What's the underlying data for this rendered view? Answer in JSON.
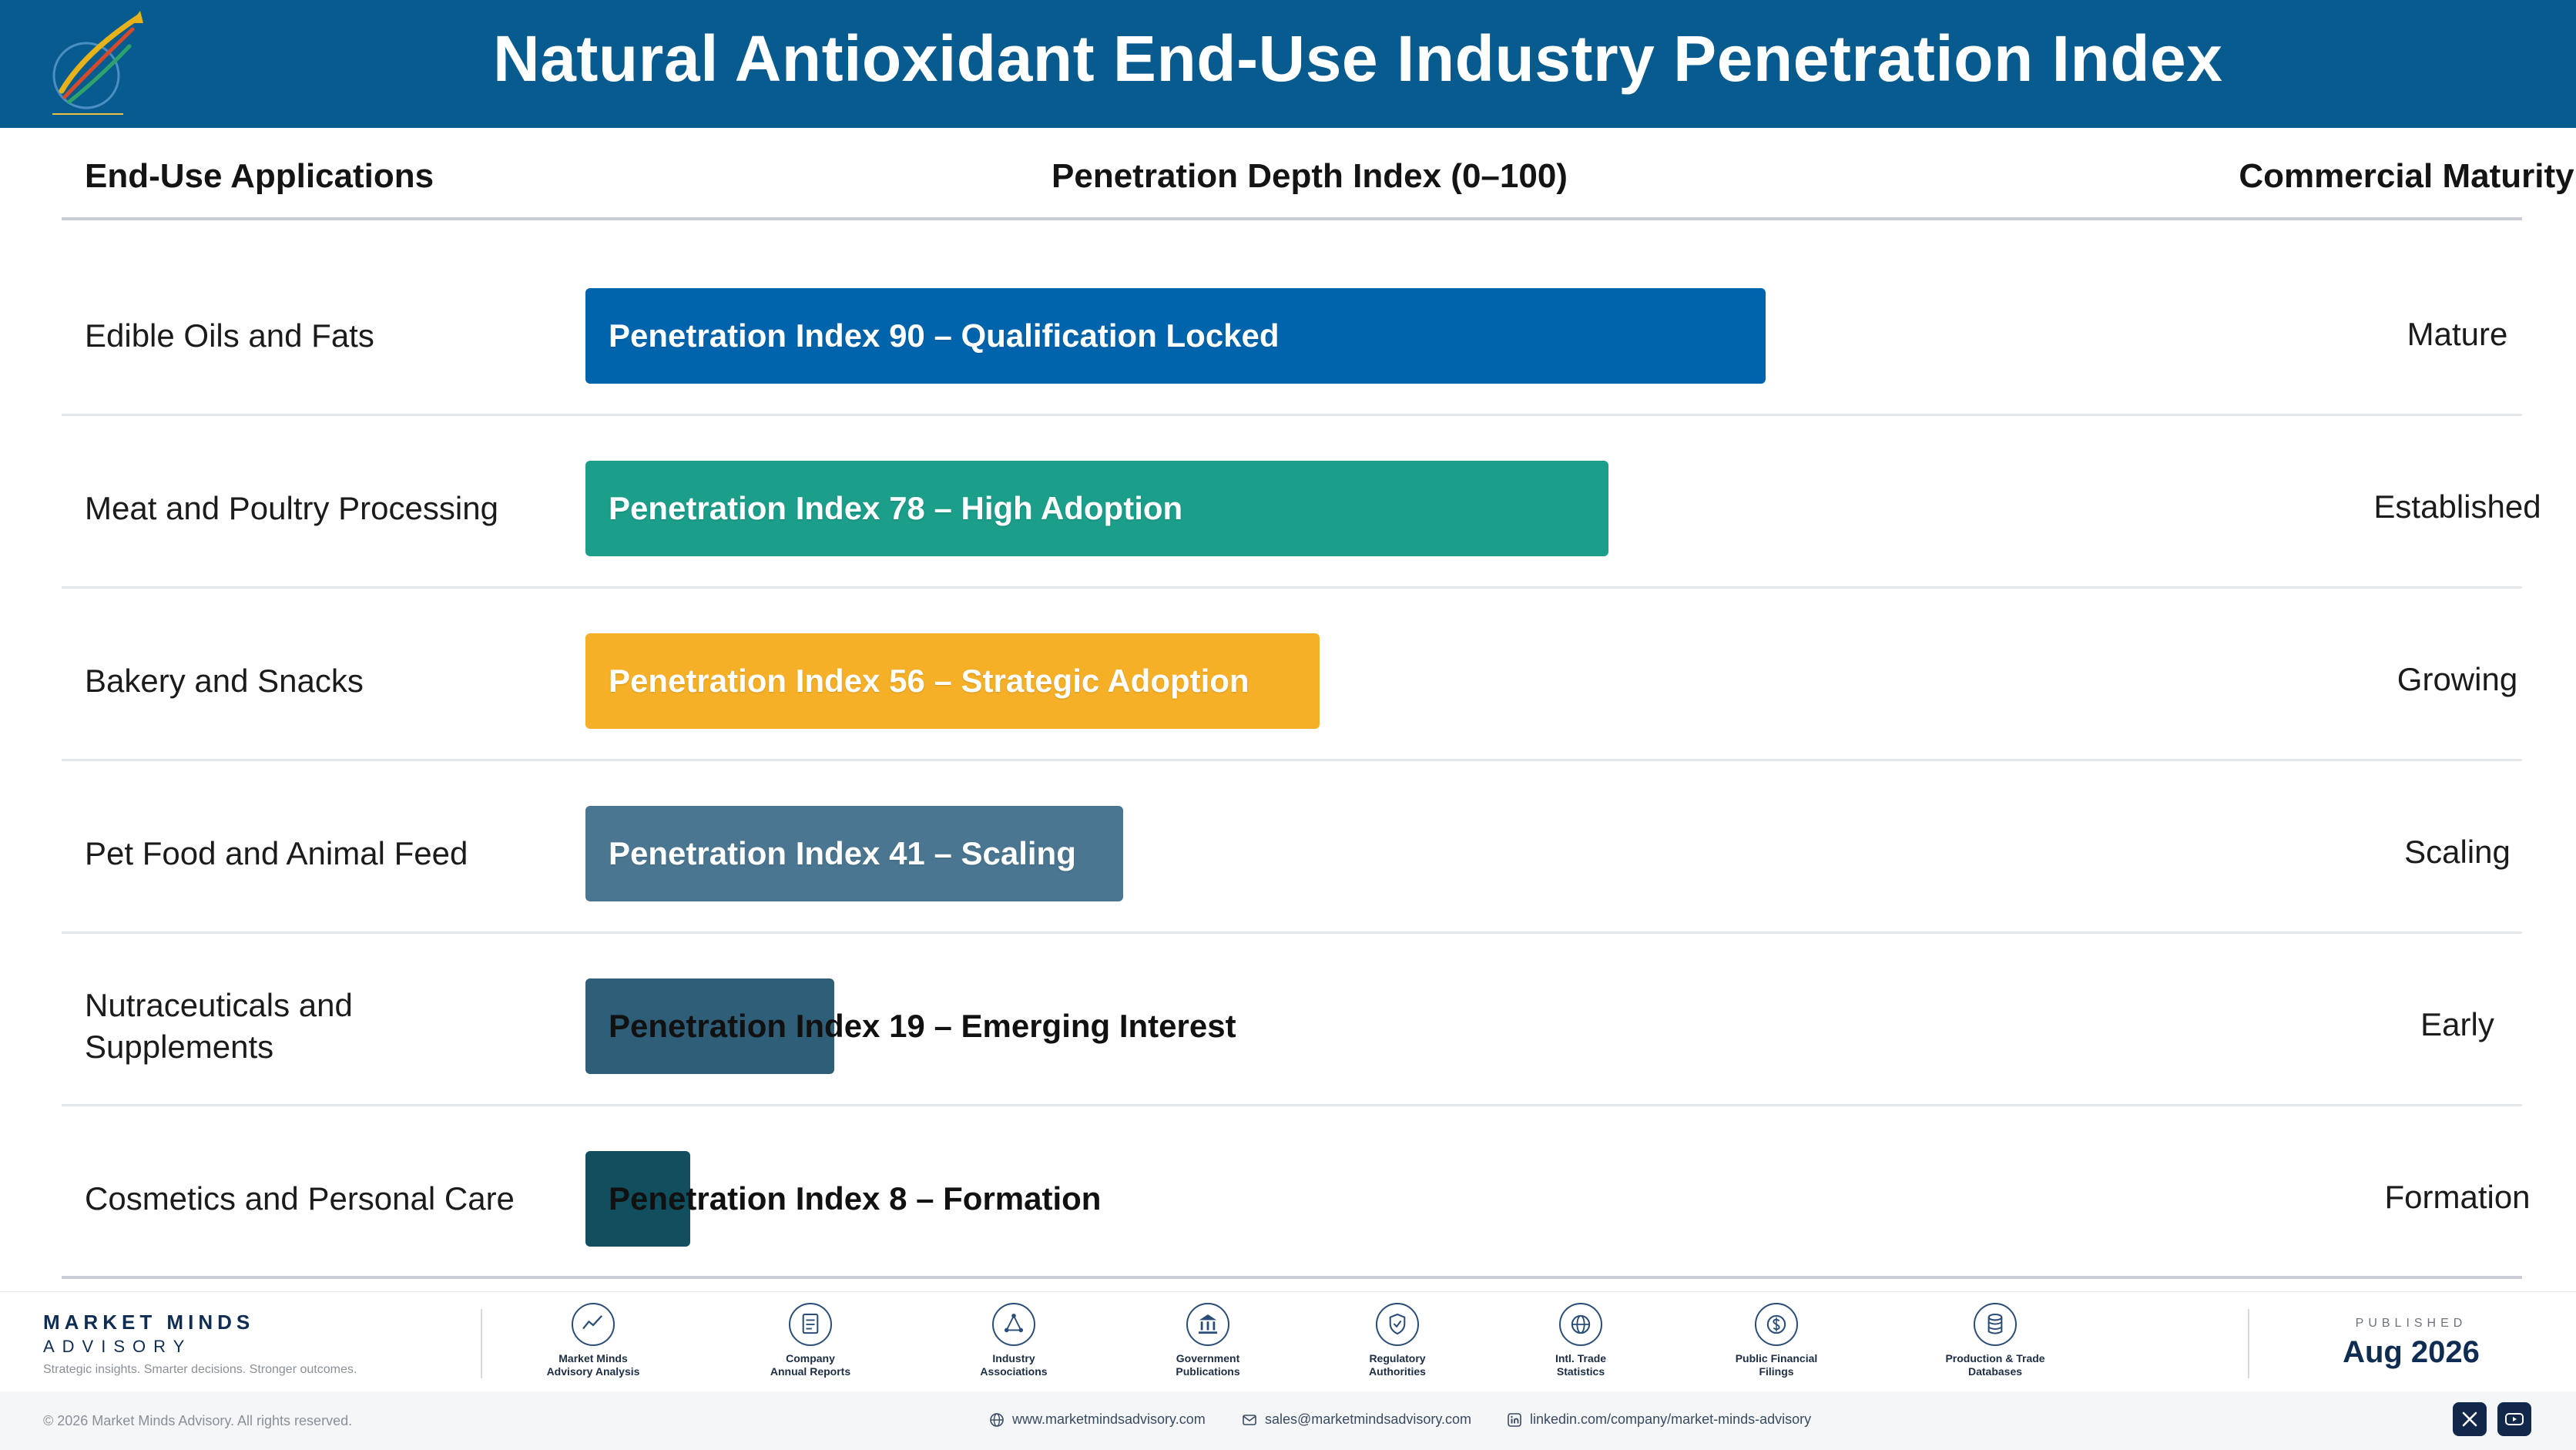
{
  "header": {
    "title": "Natural Antioxidant End-Use Industry Penetration Index"
  },
  "columns": {
    "app": "End-Use Applications",
    "index": "Penetration Depth Index (0–100)",
    "stage": "Commercial Maturity Stage"
  },
  "chart_data": {
    "type": "bar",
    "orientation": "horizontal",
    "xlim": [
      0,
      100
    ],
    "categories": [
      "Edible Oils and Fats",
      "Meat and Poultry Processing",
      "Bakery and Snacks",
      "Pet Food and Animal Feed",
      "Nutraceuticals and Supplements",
      "Cosmetics and Personal Care"
    ],
    "values": [
      90,
      78,
      56,
      41,
      19,
      8
    ],
    "bar_labels": [
      "Penetration Index 90 – Qualification Locked",
      "Penetration Index 78 – High Adoption",
      "Penetration Index 56 – Strategic Adoption",
      "Penetration Index 41 – Scaling",
      "Penetration Index 19 – Emerging Interest",
      "Penetration Index 8 – Formation"
    ],
    "stages": [
      "Mature",
      "Established",
      "Growing",
      "Scaling",
      "Early",
      "Formation"
    ],
    "colors": [
      "#0064ad",
      "#1b9e8a",
      "#f6b027",
      "#4a7691",
      "#2f5e79",
      "#114e5e"
    ]
  },
  "footer": {
    "brand_name": "MARKET MINDS",
    "brand_sub": "ADVISORY",
    "brand_tagline": "Strategic insights. Smarter decisions. Stronger outcomes.",
    "sources": [
      {
        "label": "Market Minds\nAdvisory Analysis",
        "icon": "chart-line-icon"
      },
      {
        "label": "Company\nAnnual Reports",
        "icon": "document-icon"
      },
      {
        "label": "Industry\nAssociations",
        "icon": "network-icon"
      },
      {
        "label": "Government\nPublications",
        "icon": "government-building-icon"
      },
      {
        "label": "Regulatory\nAuthorities",
        "icon": "shield-check-icon"
      },
      {
        "label": "Intl. Trade\nStatistics",
        "icon": "globe-icon"
      },
      {
        "label": "Public Financial\nFilings",
        "icon": "dollar-coin-icon"
      },
      {
        "label": "Production & Trade\nDatabases",
        "icon": "database-icon"
      }
    ],
    "published_label": "PUBLISHED",
    "published_date": "Aug 2026",
    "copyright": "© 2026 Market Minds Advisory. All rights reserved.",
    "website": "www.marketmindsadvisory.com",
    "email": "sales@marketmindsadvisory.com",
    "linkedin": "linkedin.com/company/market-minds-advisory"
  }
}
